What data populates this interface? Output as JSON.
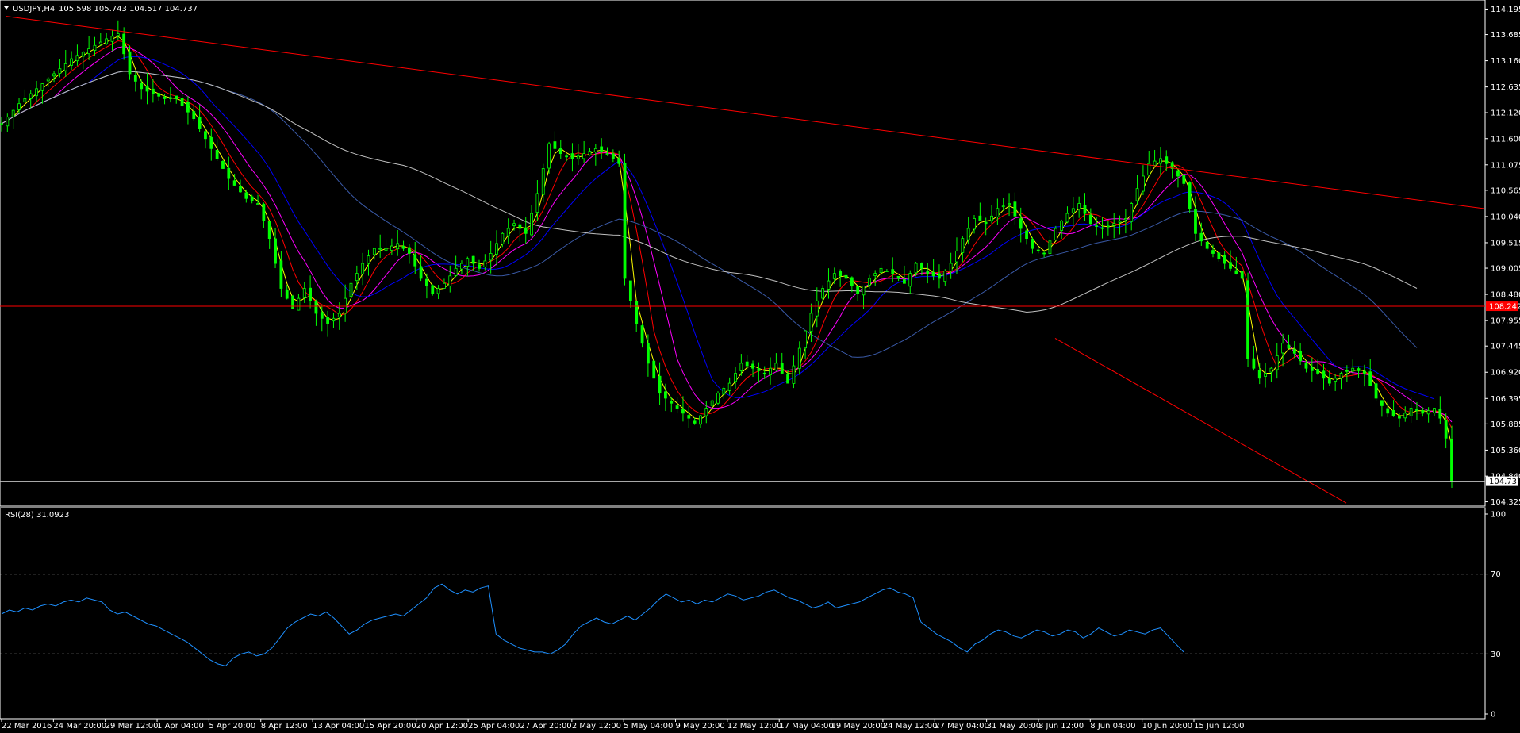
{
  "window": {
    "symbol_header": "USDJPY,H4",
    "ohlc": "105.598 105.743 104.517 104.737"
  },
  "colors": {
    "background": "#000000",
    "candles": "#00ff00",
    "bars_line": "#00ff00",
    "axis": "#ffffff",
    "ma_yellow": "#ffff00",
    "ma_red": "#ff0000",
    "ma_magenta": "#ff00ff",
    "ma_blue": "#0000ff",
    "ma_navy": "#3a5aa8",
    "ma_gray": "#c0c0c0",
    "trendline": "#ff0000",
    "hline_support": "#ff0000",
    "hline_current": "#c0c0c0",
    "rsi": "#1e90ff"
  },
  "chart_data": [
    {
      "type": "candlestick",
      "symbol": "USDJPY",
      "timeframe": "H4",
      "ylim": [
        104.27,
        114.25
      ],
      "y_ticks": [
        "114.195",
        "113.685",
        "113.160",
        "112.635",
        "112.120",
        "111.600",
        "111.075",
        "110.565",
        "110.040",
        "109.515",
        "109.005",
        "108.480",
        "107.955",
        "107.445",
        "106.920",
        "106.395",
        "105.885",
        "105.360",
        "104.840",
        "104.325"
      ],
      "x_ticks": [
        "22 Mar 2016",
        "24 Mar 20:00",
        "29 Mar 12:00",
        "1 Apr 04:00",
        "5 Apr 20:00",
        "8 Apr 12:00",
        "13 Apr 04:00",
        "15 Apr 20:00",
        "20 Apr 12:00",
        "25 Apr 04:00",
        "27 Apr 20:00",
        "2 May 12:00",
        "5 May 04:00",
        "9 May 20:00",
        "12 May 12:00",
        "17 May 04:00",
        "19 May 20:00",
        "24 May 12:00",
        "27 May 04:00",
        "31 May 20:00",
        "3 Jun 12:00",
        "8 Jun 04:00",
        "10 Jun 20:00",
        "15 Jun 12:00"
      ],
      "close_path": [
        [
          0,
          111.9
        ],
        [
          3,
          112.3
        ],
        [
          6,
          112.6
        ],
        [
          9,
          112.9
        ],
        [
          12,
          113.2
        ],
        [
          15,
          113.4
        ],
        [
          18,
          113.6
        ],
        [
          20,
          113.7
        ],
        [
          22,
          112.9
        ],
        [
          24,
          112.6
        ],
        [
          26,
          112.5
        ],
        [
          28,
          112.4
        ],
        [
          30,
          112.4
        ],
        [
          33,
          112.0
        ],
        [
          36,
          111.4
        ],
        [
          39,
          110.8
        ],
        [
          42,
          110.4
        ],
        [
          44,
          110.3
        ],
        [
          46,
          109.6
        ],
        [
          48,
          108.6
        ],
        [
          50,
          108.2
        ],
        [
          52,
          108.6
        ],
        [
          54,
          108.1
        ],
        [
          56,
          107.9
        ],
        [
          58,
          108.1
        ],
        [
          60,
          108.7
        ],
        [
          62,
          109.1
        ],
        [
          64,
          109.4
        ],
        [
          66,
          109.4
        ],
        [
          68,
          109.5
        ],
        [
          70,
          109.3
        ],
        [
          72,
          108.8
        ],
        [
          74,
          108.5
        ],
        [
          76,
          108.7
        ],
        [
          78,
          109.0
        ],
        [
          80,
          109.2
        ],
        [
          82,
          109.0
        ],
        [
          84,
          109.3
        ],
        [
          86,
          109.7
        ],
        [
          88,
          109.9
        ],
        [
          90,
          109.7
        ],
        [
          92,
          110.5
        ],
        [
          94,
          111.5
        ],
        [
          96,
          111.3
        ],
        [
          98,
          111.2
        ],
        [
          100,
          111.3
        ],
        [
          102,
          111.4
        ],
        [
          104,
          111.3
        ],
        [
          106,
          111.1
        ],
        [
          107,
          108.8
        ],
        [
          109,
          107.9
        ],
        [
          111,
          107.1
        ],
        [
          113,
          106.5
        ],
        [
          115,
          106.3
        ],
        [
          117,
          106.1
        ],
        [
          119,
          105.9
        ],
        [
          121,
          106.2
        ],
        [
          123,
          106.5
        ],
        [
          125,
          106.7
        ],
        [
          127,
          107.1
        ],
        [
          129,
          107.0
        ],
        [
          131,
          106.9
        ],
        [
          133,
          107.1
        ],
        [
          135,
          106.7
        ],
        [
          137,
          107.4
        ],
        [
          139,
          108.1
        ],
        [
          141,
          108.6
        ],
        [
          143,
          108.9
        ],
        [
          145,
          108.8
        ],
        [
          147,
          108.5
        ],
        [
          149,
          108.8
        ],
        [
          151,
          109.0
        ],
        [
          153,
          108.9
        ],
        [
          155,
          108.7
        ],
        [
          157,
          109.1
        ],
        [
          159,
          108.9
        ],
        [
          161,
          108.8
        ],
        [
          163,
          109.1
        ],
        [
          165,
          109.6
        ],
        [
          167,
          110.0
        ],
        [
          169,
          109.9
        ],
        [
          171,
          110.2
        ],
        [
          173,
          110.3
        ],
        [
          175,
          109.8
        ],
        [
          177,
          109.4
        ],
        [
          179,
          109.3
        ],
        [
          181,
          109.8
        ],
        [
          183,
          110.1
        ],
        [
          185,
          110.3
        ],
        [
          187,
          109.9
        ],
        [
          189,
          109.8
        ],
        [
          191,
          109.9
        ],
        [
          193,
          110.0
        ],
        [
          195,
          110.6
        ],
        [
          197,
          111.1
        ],
        [
          199,
          111.2
        ],
        [
          201,
          111.0
        ],
        [
          203,
          110.7
        ],
        [
          205,
          109.7
        ],
        [
          207,
          109.4
        ],
        [
          209,
          109.2
        ],
        [
          211,
          109.0
        ],
        [
          213,
          108.8
        ],
        [
          214,
          107.2
        ],
        [
          216,
          106.8
        ],
        [
          218,
          107.0
        ],
        [
          220,
          107.5
        ],
        [
          222,
          107.3
        ],
        [
          224,
          107.0
        ],
        [
          226,
          106.9
        ],
        [
          228,
          106.7
        ],
        [
          230,
          106.9
        ],
        [
          232,
          107.0
        ],
        [
          234,
          106.9
        ],
        [
          236,
          106.4
        ],
        [
          238,
          106.1
        ],
        [
          240,
          106.0
        ],
        [
          242,
          106.2
        ],
        [
          244,
          106.1
        ],
        [
          246,
          106.2
        ],
        [
          247,
          106.0
        ],
        [
          248,
          105.6
        ],
        [
          249,
          104.737
        ]
      ],
      "horizontal_lines": [
        {
          "price": 108.242,
          "label": "108.242"
        },
        {
          "price": 104.737,
          "label": "104.737"
        }
      ],
      "moving_averages": [
        "yellow",
        "red",
        "magenta",
        "blue",
        "navy",
        "gray"
      ]
    },
    {
      "type": "line",
      "indicator": "RSI(28)",
      "title": "RSI(28) 31.0923",
      "ylim": [
        0,
        100
      ],
      "y_ticks": [
        "100",
        "70",
        "30",
        "0"
      ],
      "levels": [
        70,
        30
      ],
      "values": [
        50,
        52,
        51,
        53,
        52,
        54,
        55,
        54,
        56,
        57,
        56,
        58,
        57,
        56,
        52,
        50,
        51,
        49,
        47,
        45,
        44,
        42,
        40,
        38,
        36,
        33,
        30,
        27,
        25,
        24,
        28,
        30,
        31,
        29,
        30,
        33,
        38,
        43,
        46,
        48,
        50,
        49,
        51,
        48,
        44,
        40,
        42,
        45,
        47,
        48,
        49,
        50,
        49,
        52,
        55,
        58,
        63,
        65,
        62,
        60,
        62,
        61,
        63,
        64,
        40,
        37,
        35,
        33,
        32,
        31,
        31,
        30,
        32,
        35,
        40,
        44,
        46,
        48,
        46,
        45,
        47,
        49,
        47,
        50,
        53,
        57,
        60,
        58,
        56,
        57,
        55,
        57,
        56,
        58,
        60,
        59,
        57,
        58,
        59,
        61,
        62,
        60,
        58,
        57,
        55,
        53,
        54,
        56,
        53,
        54,
        55,
        56,
        58,
        60,
        62,
        63,
        61,
        60,
        58,
        46,
        43,
        40,
        38,
        36,
        33,
        31,
        35,
        37,
        40,
        42,
        41,
        39,
        38,
        40,
        42,
        41,
        39,
        40,
        42,
        41,
        38,
        40,
        43,
        41,
        39,
        40,
        42,
        41,
        40,
        42,
        43,
        39,
        35,
        31
      ]
    }
  ]
}
